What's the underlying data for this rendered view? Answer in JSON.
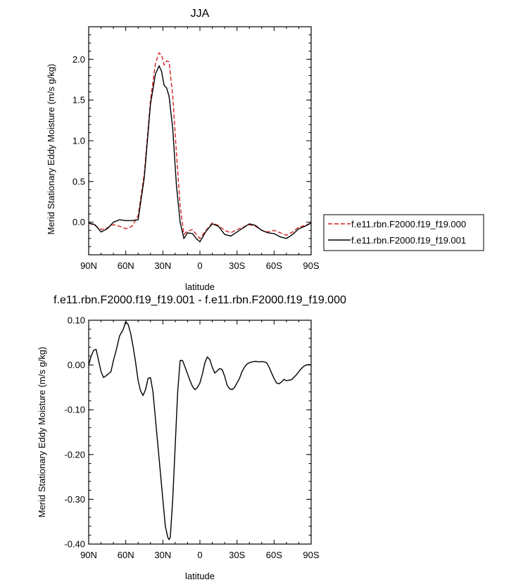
{
  "chart_data": [
    {
      "type": "line",
      "title": "JJA",
      "xlabel": "latitude",
      "ylabel": "Merid Stationary Eddy Moisture (m/s g/kg)",
      "x_tick_labels": [
        "90N",
        "60N",
        "30N",
        "0",
        "30S",
        "60S",
        "90S"
      ],
      "x_ticks": [
        90,
        60,
        30,
        0,
        -30,
        -60,
        -90
      ],
      "xlim": [
        90,
        -90
      ],
      "ylim": [
        -0.4,
        2.4
      ],
      "y_ticks": [
        0.0,
        0.5,
        1.0,
        1.5,
        2.0
      ],
      "y_tick_labels": [
        "0.0",
        "0.5",
        "1.0",
        "1.5",
        "2.0"
      ],
      "legend_position": "right",
      "series": [
        {
          "name": "f.e11.rbn.F2000.f19_f19.000",
          "color": "#d42020",
          "style": "dashed",
          "x": [
            90,
            85,
            80,
            75,
            70,
            65,
            60,
            55,
            50,
            45,
            40,
            36,
            33,
            31,
            29,
            27,
            25,
            22,
            19,
            16,
            13,
            10,
            6,
            3,
            0,
            -5,
            -10,
            -15,
            -20,
            -25,
            -30,
            -35,
            -40,
            -45,
            -50,
            -55,
            -60,
            -65,
            -70,
            -75,
            -80,
            -85,
            -90
          ],
          "y": [
            -0.01,
            -0.04,
            -0.09,
            -0.07,
            -0.03,
            -0.05,
            -0.08,
            -0.05,
            0.08,
            0.6,
            1.5,
            1.95,
            2.08,
            2.05,
            1.93,
            1.98,
            1.97,
            1.55,
            0.85,
            0.2,
            -0.15,
            -0.11,
            -0.09,
            -0.15,
            -0.2,
            -0.1,
            -0.01,
            -0.04,
            -0.1,
            -0.13,
            -0.09,
            -0.06,
            -0.03,
            -0.05,
            -0.1,
            -0.12,
            -0.1,
            -0.13,
            -0.16,
            -0.12,
            -0.06,
            -0.04,
            -0.01
          ]
        },
        {
          "name": "f.e11.rbn.F2000.f19_f19.001",
          "color": "#000000",
          "style": "solid",
          "x": [
            90,
            85,
            80,
            75,
            70,
            65,
            60,
            55,
            50,
            45,
            40,
            36,
            33,
            31,
            29,
            27,
            25,
            22,
            19,
            16,
            13,
            10,
            6,
            3,
            0,
            -5,
            -10,
            -15,
            -20,
            -25,
            -30,
            -35,
            -40,
            -45,
            -50,
            -55,
            -60,
            -65,
            -70,
            -75,
            -80,
            -85,
            -90
          ],
          "y": [
            -0.01,
            -0.03,
            -0.12,
            -0.08,
            0.0,
            0.03,
            0.02,
            0.02,
            0.03,
            0.55,
            1.45,
            1.82,
            1.92,
            1.85,
            1.68,
            1.65,
            1.55,
            1.15,
            0.45,
            0.0,
            -0.2,
            -0.13,
            -0.14,
            -0.2,
            -0.24,
            -0.11,
            -0.02,
            -0.05,
            -0.15,
            -0.17,
            -0.12,
            -0.07,
            -0.02,
            -0.04,
            -0.1,
            -0.13,
            -0.14,
            -0.18,
            -0.2,
            -0.15,
            -0.08,
            -0.05,
            -0.01
          ]
        }
      ]
    },
    {
      "type": "line",
      "title": "f.e11.rbn.F2000.f19_f19.001 - f.e11.rbn.F2000.f19_f19.000",
      "xlabel": "latitude",
      "ylabel": "Merid Stationary Eddy Moisture (m/s g/kg)",
      "x_tick_labels": [
        "90N",
        "60N",
        "30N",
        "0",
        "30S",
        "60S",
        "90S"
      ],
      "x_ticks": [
        90,
        60,
        30,
        0,
        -30,
        -60,
        -90
      ],
      "xlim": [
        90,
        -90
      ],
      "ylim": [
        -0.4,
        0.1
      ],
      "y_ticks": [
        0.1,
        0.0,
        -0.1,
        -0.2,
        -0.3,
        -0.4
      ],
      "y_tick_labels": [
        "0.10",
        "0.00",
        "-0.10",
        "-0.20",
        "-0.30",
        "-0.40"
      ],
      "series": [
        {
          "color": "#000000",
          "style": "solid",
          "x": [
            90,
            88,
            86,
            84,
            82,
            80,
            78,
            75,
            72,
            70,
            68,
            65,
            62,
            60,
            58,
            56,
            54,
            52,
            50,
            48,
            46,
            44,
            42,
            40,
            38,
            36,
            34,
            32,
            30,
            28,
            26,
            25,
            24,
            22,
            20,
            18,
            16,
            14,
            12,
            10,
            8,
            6,
            4,
            2,
            0,
            -2,
            -4,
            -6,
            -8,
            -10,
            -12,
            -14,
            -16,
            -18,
            -20,
            -22,
            -24,
            -26,
            -28,
            -30,
            -32,
            -34,
            -36,
            -38,
            -40,
            -42,
            -44,
            -46,
            -48,
            -50,
            -52,
            -54,
            -56,
            -58,
            -60,
            -62,
            -64,
            -66,
            -68,
            -70,
            -72,
            -74,
            -76,
            -78,
            -80,
            -82,
            -84,
            -86,
            -88,
            -90
          ],
          "y": [
            0.0,
            0.02,
            0.033,
            0.035,
            0.01,
            -0.015,
            -0.028,
            -0.022,
            -0.015,
            0.01,
            0.03,
            0.065,
            0.08,
            0.097,
            0.09,
            0.07,
            0.04,
            0.005,
            -0.035,
            -0.058,
            -0.068,
            -0.055,
            -0.03,
            -0.028,
            -0.06,
            -0.12,
            -0.18,
            -0.24,
            -0.3,
            -0.36,
            -0.385,
            -0.39,
            -0.385,
            -0.3,
            -0.18,
            -0.06,
            0.01,
            0.01,
            -0.005,
            -0.02,
            -0.035,
            -0.048,
            -0.055,
            -0.05,
            -0.04,
            -0.02,
            0.005,
            0.018,
            0.012,
            -0.005,
            -0.018,
            -0.013,
            -0.008,
            -0.01,
            -0.025,
            -0.045,
            -0.053,
            -0.055,
            -0.05,
            -0.04,
            -0.03,
            -0.015,
            -0.005,
            0.002,
            0.005,
            0.007,
            0.008,
            0.008,
            0.007,
            0.008,
            0.007,
            0.005,
            -0.005,
            -0.018,
            -0.03,
            -0.04,
            -0.042,
            -0.038,
            -0.032,
            -0.035,
            -0.034,
            -0.033,
            -0.028,
            -0.022,
            -0.015,
            -0.008,
            -0.003,
            0.0,
            0.001,
            0.0
          ]
        }
      ]
    }
  ]
}
